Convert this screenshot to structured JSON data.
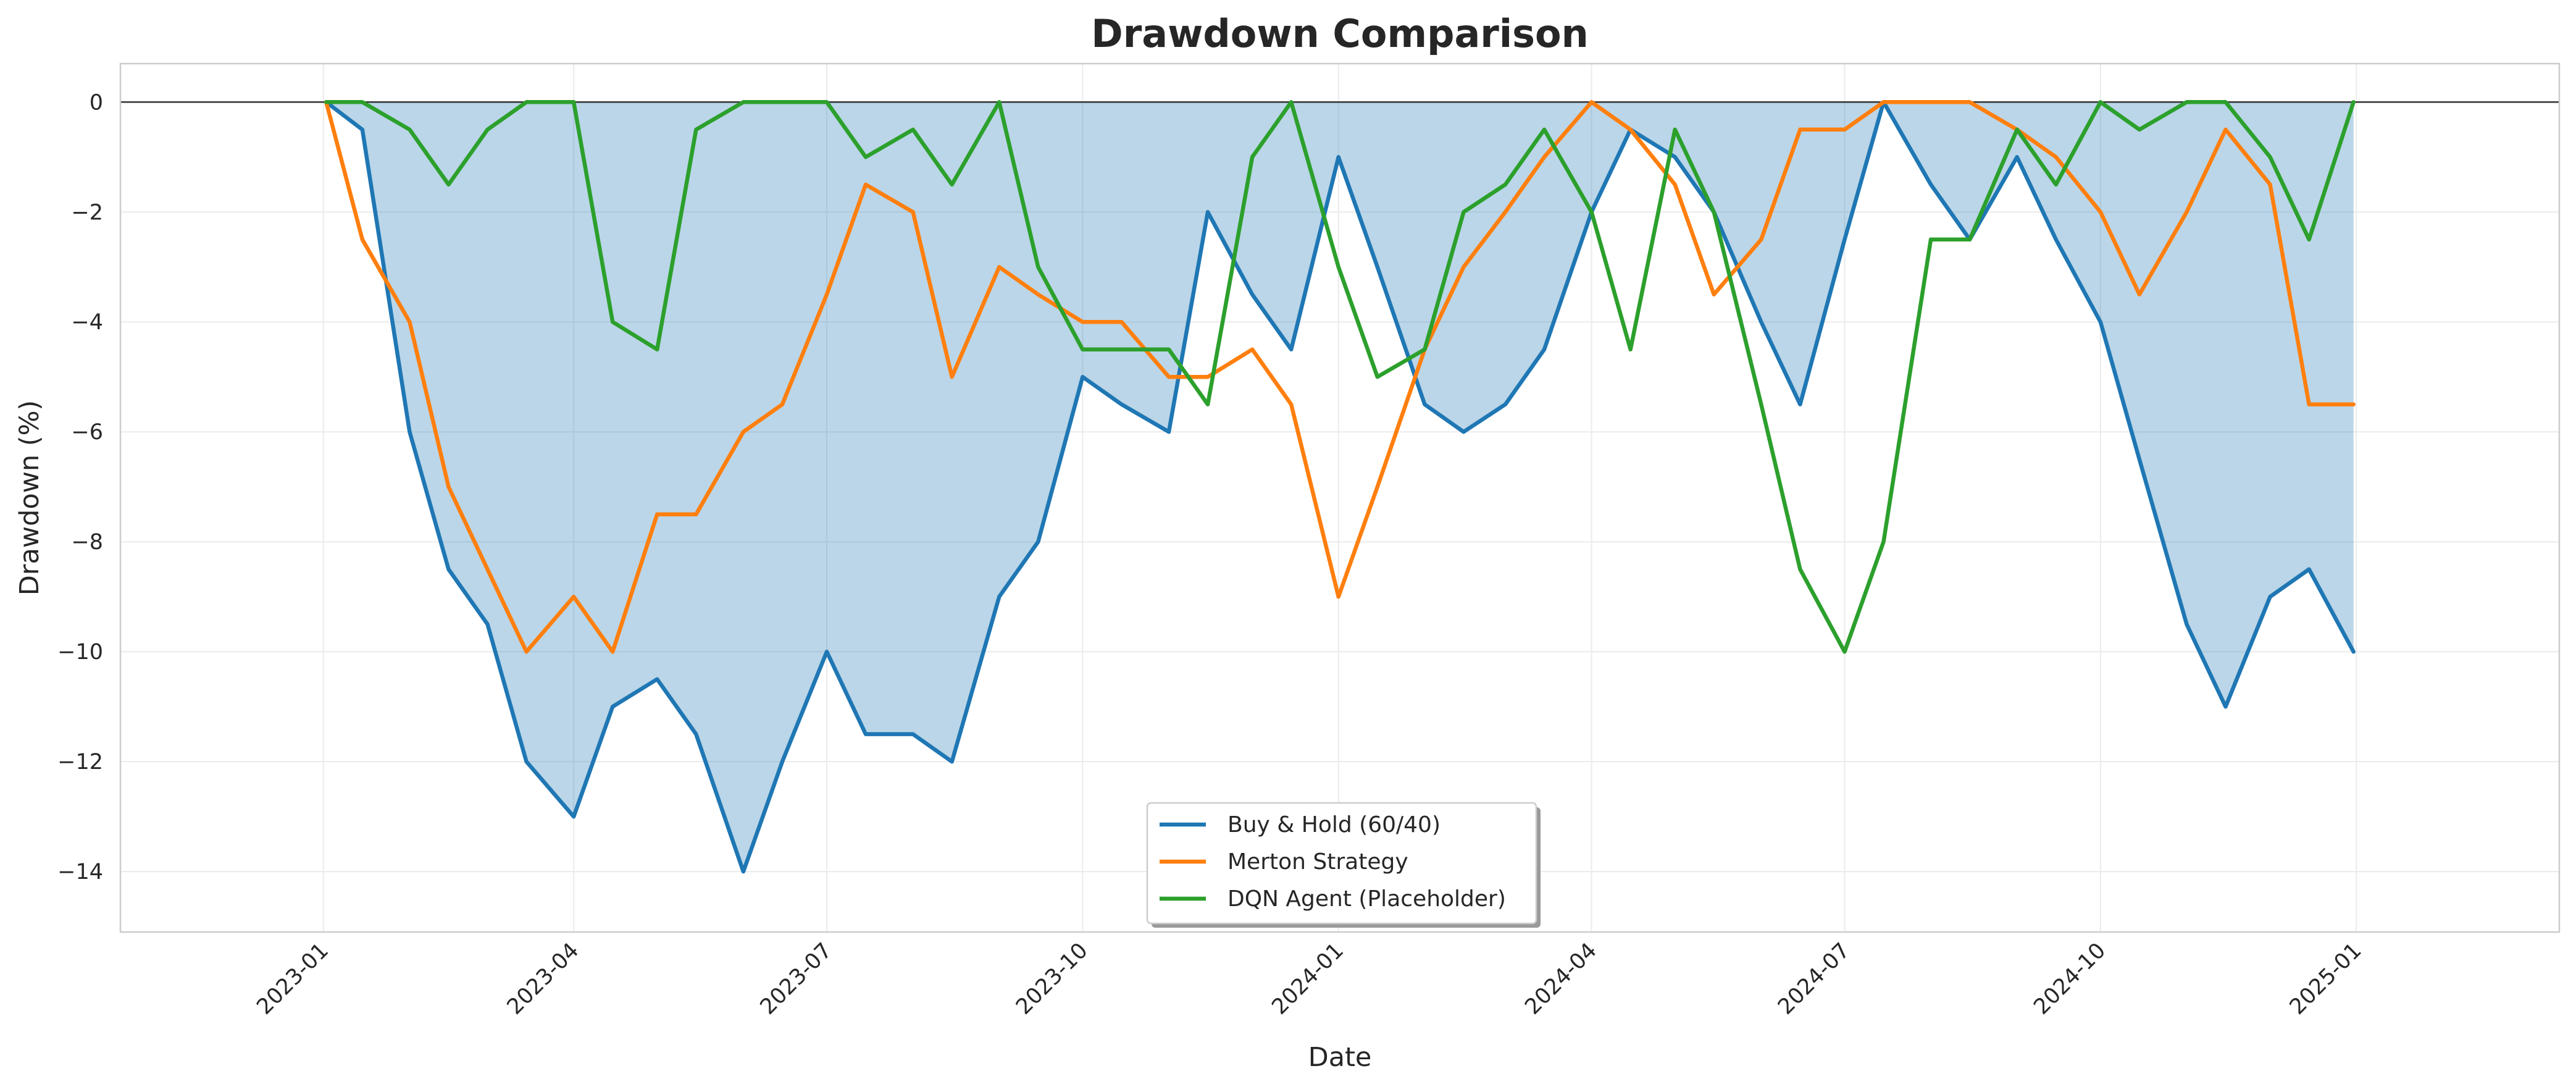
{
  "chart_data": {
    "type": "line",
    "title": "Drawdown Comparison",
    "xlabel": "Date",
    "ylabel": "Drawdown (%)",
    "x_ticks": [
      "2023-01",
      "2023-04",
      "2023-07",
      "2023-10",
      "2024-01",
      "2024-04",
      "2024-07",
      "2024-10",
      "2025-01"
    ],
    "y_ticks": [
      "0",
      "−2",
      "−4",
      "−6",
      "−8",
      "−10",
      "−12",
      "−14"
    ],
    "xlim": [
      "2022-10-20",
      "2025-03-15"
    ],
    "ylim": [
      -15.1,
      0.7
    ],
    "grid": true,
    "legend_position": "lower center",
    "fill_under_series": "Buy & Hold (60/40)",
    "x": [
      "2023-01-02",
      "2023-01-15",
      "2023-02-01",
      "2023-02-15",
      "2023-03-01",
      "2023-03-15",
      "2023-04-01",
      "2023-04-15",
      "2023-05-01",
      "2023-05-15",
      "2023-06-01",
      "2023-06-15",
      "2023-07-01",
      "2023-07-15",
      "2023-08-01",
      "2023-08-15",
      "2023-09-01",
      "2023-09-15",
      "2023-10-01",
      "2023-10-15",
      "2023-11-01",
      "2023-11-15",
      "2023-12-01",
      "2023-12-15",
      "2024-01-01",
      "2024-01-15",
      "2024-02-01",
      "2024-02-15",
      "2024-03-01",
      "2024-03-15",
      "2024-04-01",
      "2024-04-15",
      "2024-05-01",
      "2024-05-15",
      "2024-06-01",
      "2024-06-15",
      "2024-07-01",
      "2024-07-15",
      "2024-08-01",
      "2024-08-15",
      "2024-09-01",
      "2024-09-15",
      "2024-10-01",
      "2024-10-15",
      "2024-11-01",
      "2024-11-15",
      "2024-12-01",
      "2024-12-15",
      "2024-12-31"
    ],
    "series": [
      {
        "name": "Buy & Hold (60/40)",
        "color": "#1f77b4",
        "values": [
          0,
          -0.5,
          -6.0,
          -8.5,
          -9.5,
          -12.0,
          -13.0,
          -11.0,
          -10.5,
          -11.5,
          -14.0,
          -12.0,
          -10.0,
          -11.5,
          -11.5,
          -12.0,
          -9.0,
          -8.0,
          -5.0,
          -5.5,
          -6.0,
          -2.0,
          -3.5,
          -4.5,
          -1.0,
          -3.0,
          -5.5,
          -6.0,
          -5.5,
          -4.5,
          -2.0,
          -0.5,
          -1.0,
          -2.0,
          -4.0,
          -5.5,
          -2.5,
          0,
          -1.5,
          -2.5,
          -1.0,
          -2.5,
          -4.0,
          -6.5,
          -9.5,
          -11.0,
          -9.0,
          -8.5,
          -10.0
        ]
      },
      {
        "name": "Merton Strategy",
        "color": "#ff7f0e",
        "values": [
          0,
          -2.5,
          -4.0,
          -7.0,
          -8.5,
          -10.0,
          -9.0,
          -10.0,
          -7.5,
          -7.5,
          -6.0,
          -5.5,
          -3.5,
          -1.5,
          -2.0,
          -5.0,
          -3.0,
          -3.5,
          -4.0,
          -4.0,
          -5.0,
          -5.0,
          -4.5,
          -5.5,
          -9.0,
          -7.0,
          -4.5,
          -3.0,
          -2.0,
          -1.0,
          0,
          -0.5,
          -1.5,
          -3.5,
          -2.5,
          -0.5,
          -0.5,
          0,
          0,
          0,
          -0.5,
          -1.0,
          -2.0,
          -3.5,
          -2.0,
          -0.5,
          -1.5,
          -5.5,
          -5.5
        ]
      },
      {
        "name": "DQN Agent (Placeholder)",
        "color": "#2ca02c",
        "values": [
          0,
          0,
          -0.5,
          -1.5,
          -0.5,
          0,
          0,
          -4.0,
          -4.5,
          -0.5,
          0,
          0,
          0,
          -1.0,
          -0.5,
          -1.5,
          0,
          -3.0,
          -4.5,
          -4.5,
          -4.5,
          -5.5,
          -1.0,
          0,
          -3.0,
          -5.0,
          -4.5,
          -2.0,
          -1.5,
          -0.5,
          -2.0,
          -4.5,
          -0.5,
          -2.0,
          -5.5,
          -8.5,
          -10.0,
          -8.0,
          -2.5,
          -2.5,
          -0.5,
          -1.5,
          0,
          -0.5,
          0,
          0,
          -1.0,
          -2.5,
          0
        ]
      }
    ]
  }
}
